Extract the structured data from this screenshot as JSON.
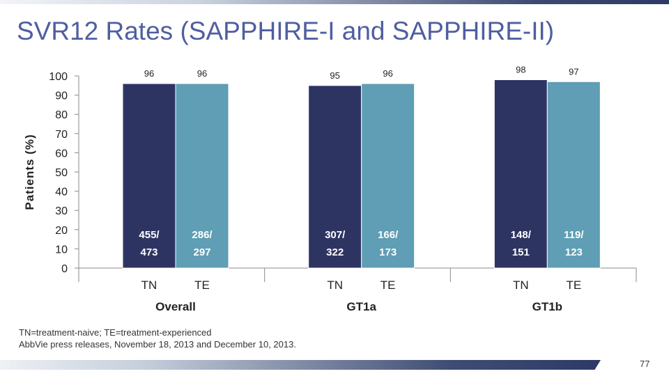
{
  "title": "SVR12 Rates (SAPPHIRE-I and SAPPHIRE-II)",
  "footnotes": [
    "TN=treatment-naive; TE=treatment-experienced",
    "AbbVie press releases, November 18, 2013 and December 10, 2013."
  ],
  "page_number": "77",
  "colors": {
    "title": "#4f5ea0",
    "tn_bar": "#2e3462",
    "te_bar": "#5f9eb4",
    "bar_label": "#ffffff"
  },
  "chart_data": {
    "type": "bar",
    "ylabel": "Patients (%)",
    "ylim": [
      0,
      100
    ],
    "yticks": [
      0,
      10,
      20,
      30,
      40,
      50,
      60,
      70,
      80,
      90,
      100
    ],
    "groups": [
      "Overall",
      "GT1a",
      "GT1b"
    ],
    "series": [
      {
        "name": "TN",
        "values": [
          96,
          95,
          98
        ],
        "counts": [
          [
            "455/",
            "473"
          ],
          [
            "307/",
            "322"
          ],
          [
            "148/",
            "151"
          ]
        ]
      },
      {
        "name": "TE",
        "values": [
          96,
          96,
          97
        ],
        "counts": [
          [
            "286/",
            "297"
          ],
          [
            "166/",
            "173"
          ],
          [
            "119/",
            "123"
          ]
        ]
      }
    ],
    "grid": false,
    "legend": "none"
  }
}
